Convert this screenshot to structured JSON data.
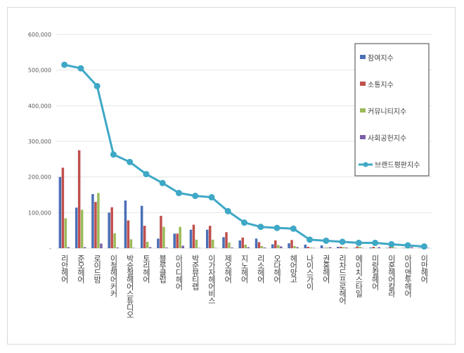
{
  "chart_data": {
    "type": "bar",
    "categories": [
      "리안헤어",
      "준오헤어",
      "로이드밤",
      "이철헤어커커",
      "박승철헤어스튜디오",
      "토리헤어",
      "블루클럽",
      "아이디헤어",
      "박준뷰티랩",
      "이가자헤어비스",
      "제오헤어",
      "지노헤어",
      "리소헤어",
      "오다헤어",
      "헤어망고",
      "나이스가이",
      "권홍헤어",
      "리차드프로헤어",
      "에이치스타일",
      "미랑컬헤어",
      "이훈헤어칼라",
      "아이앤투헤어",
      "이만헤어"
    ],
    "series": [
      {
        "name": "참여지수",
        "kind": "bar",
        "color": "#4a6fb5",
        "values": [
          200000,
          114000,
          152000,
          100000,
          134000,
          119000,
          27000,
          41000,
          52000,
          52000,
          31000,
          22000,
          27000,
          11000,
          14000,
          10000,
          8000,
          4000,
          1000,
          2000,
          1000,
          1000,
          1000
        ]
      },
      {
        "name": "소통지수",
        "kind": "bar",
        "color": "#c0504d",
        "values": [
          226000,
          275000,
          130000,
          115000,
          78000,
          63000,
          91000,
          41000,
          66000,
          63000,
          45000,
          30000,
          17000,
          22000,
          23000,
          4000,
          1000,
          4000,
          5000,
          4000,
          3000,
          1000,
          1000
        ]
      },
      {
        "name": "커뮤니티지수",
        "kind": "bar",
        "color": "#9bbb59",
        "values": [
          84000,
          108000,
          155000,
          42000,
          25000,
          18000,
          60000,
          60000,
          24000,
          24000,
          16000,
          10000,
          6000,
          9000,
          6000,
          2000,
          2000,
          3000,
          4000,
          1000,
          4000,
          1000,
          1000
        ]
      },
      {
        "name": "사회공헌지수",
        "kind": "bar",
        "color": "#7b5ea7",
        "values": [
          3000,
          3000,
          13000,
          2000,
          1000,
          3000,
          2000,
          7000,
          1000,
          1000,
          2000,
          3000,
          2000,
          5000,
          3000,
          1000,
          3000,
          2000,
          1000,
          3000,
          1000,
          3000,
          1000
        ]
      },
      {
        "name": "브랜드평판지수",
        "kind": "line",
        "color": "#3ea8c6",
        "values": [
          515000,
          505000,
          455000,
          263000,
          242000,
          208000,
          183000,
          155000,
          147000,
          143000,
          104000,
          72000,
          60000,
          57000,
          55000,
          24000,
          21000,
          18000,
          15000,
          15000,
          11000,
          8000,
          5000
        ]
      }
    ],
    "yticks": [
      "-",
      "100,000",
      "200,000",
      "300,000",
      "400,000",
      "500,000",
      "600,000"
    ],
    "ylim": [
      0,
      600000
    ],
    "grid": true,
    "legend": "right"
  }
}
